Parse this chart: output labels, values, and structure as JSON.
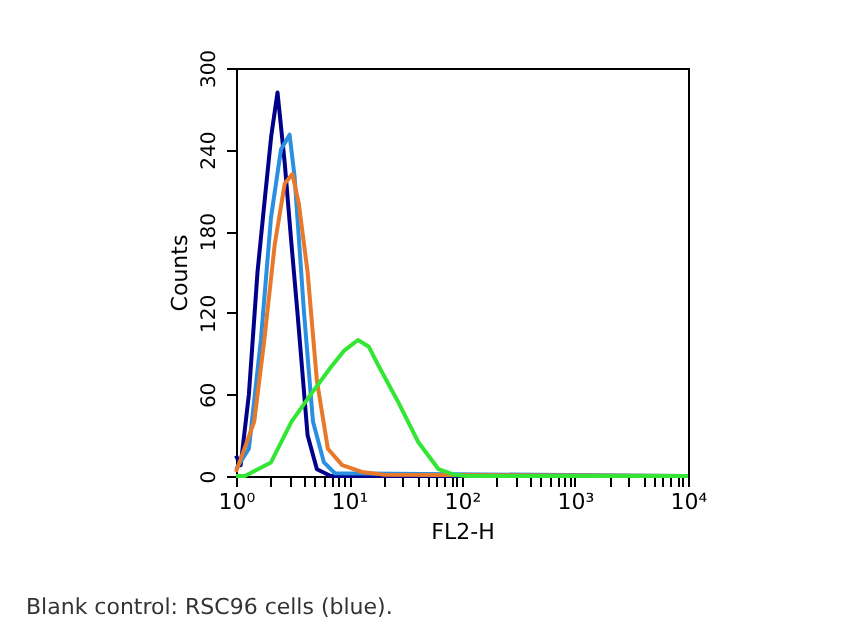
{
  "chart_data": {
    "type": "line",
    "xlabel": "FL2-H",
    "ylabel": "Counts",
    "log": "x",
    "xlim": [
      1,
      10000
    ],
    "xticks": [
      {
        "value": 1,
        "label": "10⁰"
      },
      {
        "value": 2,
        "label": null
      },
      {
        "value": 3,
        "label": null
      },
      {
        "value": 4,
        "label": null
      },
      {
        "value": 5,
        "label": null
      },
      {
        "value": 6,
        "label": null
      },
      {
        "value": 7,
        "label": null
      },
      {
        "value": 8,
        "label": null
      },
      {
        "value": 9,
        "label": null
      },
      {
        "value": 10,
        "label": "10¹"
      },
      {
        "value": 20,
        "label": null
      },
      {
        "value": 30,
        "label": null
      },
      {
        "value": 40,
        "label": null
      },
      {
        "value": 50,
        "label": null
      },
      {
        "value": 60,
        "label": null
      },
      {
        "value": 70,
        "label": null
      },
      {
        "value": 80,
        "label": null
      },
      {
        "value": 90,
        "label": null
      },
      {
        "value": 100,
        "label": "10²"
      },
      {
        "value": 200,
        "label": null
      },
      {
        "value": 300,
        "label": null
      },
      {
        "value": 400,
        "label": null
      },
      {
        "value": 500,
        "label": null
      },
      {
        "value": 600,
        "label": null
      },
      {
        "value": 700,
        "label": null
      },
      {
        "value": 800,
        "label": null
      },
      {
        "value": 900,
        "label": null
      },
      {
        "value": 1000,
        "label": "10³"
      },
      {
        "value": 2000,
        "label": null
      },
      {
        "value": 3000,
        "label": null
      },
      {
        "value": 4000,
        "label": null
      },
      {
        "value": 5000,
        "label": null
      },
      {
        "value": 6000,
        "label": null
      },
      {
        "value": 7000,
        "label": null
      },
      {
        "value": 8000,
        "label": null
      },
      {
        "value": 9000,
        "label": null
      },
      {
        "value": 10000,
        "label": "10⁴"
      }
    ],
    "ylim": [
      0,
      300
    ],
    "yticks": [
      0,
      60,
      120,
      180,
      240,
      300
    ],
    "grid": false,
    "legend": false,
    "marker": "none",
    "line_style": "solid",
    "annotations": [
      "Blank control: RSC96 cells (blue)."
    ],
    "series": [
      {
        "color": "#00008b",
        "x": [
          1,
          1.1,
          1.3,
          1.55,
          1.78,
          2.05,
          2.33,
          2.7,
          3.1,
          3.5,
          4.3,
          5.2,
          6.9,
          10000
        ],
        "values": [
          15,
          8,
          60,
          150,
          200,
          250,
          282,
          230,
          170,
          120,
          30,
          5,
          0,
          0
        ]
      },
      {
        "color": "#2a8fe0",
        "x": [
          1,
          1.3,
          1.66,
          2.04,
          2.5,
          2.98,
          3.3,
          4.0,
          4.8,
          6.0,
          7.5,
          10000
        ],
        "values": [
          5,
          20,
          100,
          190,
          240,
          251,
          220,
          120,
          40,
          10,
          2,
          0
        ]
      },
      {
        "color": "#e8782a",
        "x": [
          1,
          1.45,
          1.78,
          2.2,
          2.7,
          3.16,
          3.6,
          4.3,
          5.2,
          6.5,
          8.7,
          13,
          20,
          10000
        ],
        "values": [
          3,
          40,
          100,
          170,
          215,
          222,
          200,
          150,
          70,
          20,
          8,
          3,
          1,
          0
        ]
      },
      {
        "color": "#33e633",
        "x": [
          1,
          1.2,
          2.04,
          3.1,
          4.6,
          6.9,
          9,
          12,
          15,
          18,
          27,
          41,
          62,
          85,
          110,
          10000
        ],
        "values": [
          0,
          0,
          10,
          40,
          60,
          80,
          92,
          100,
          95,
          82,
          55,
          25,
          5,
          1,
          0,
          0
        ]
      }
    ]
  }
}
